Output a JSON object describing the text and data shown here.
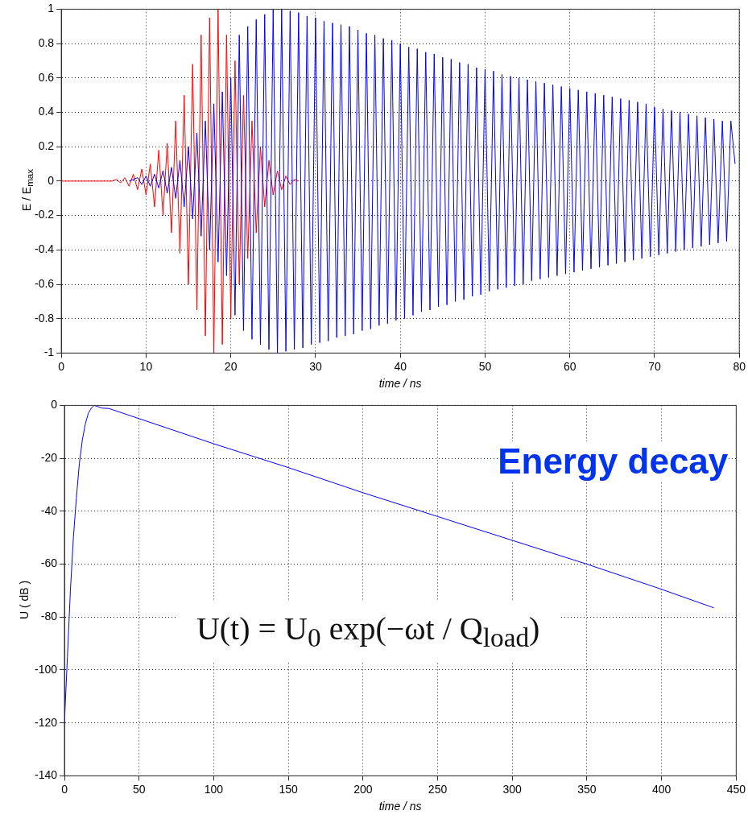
{
  "chart_data": [
    {
      "type": "line",
      "xlabel": "time / ns",
      "ylabel": "E / E$_{max}$",
      "xlim": [
        0,
        80
      ],
      "ylim": [
        -1,
        1
      ],
      "xticks": [
        0,
        10,
        20,
        30,
        40,
        50,
        60,
        70,
        80
      ],
      "yticks": [
        -1,
        -0.8,
        -0.6,
        -0.4,
        -0.2,
        0,
        0.2,
        0.4,
        0.6,
        0.8,
        1
      ],
      "grid": true,
      "legend": false,
      "marker": "none",
      "line_style": "solid",
      "series": [
        {
          "color": "#0000ff",
          "x": [
            8,
            9,
            9.5,
            10,
            10.5,
            11,
            11.5,
            12,
            12.5,
            13,
            13.5,
            14,
            14.5,
            15,
            15.5,
            16,
            16.5,
            17,
            17.5,
            18,
            18.5,
            19,
            19.5,
            20,
            20.5,
            21,
            21.5,
            22,
            22.5,
            23,
            23.5,
            24,
            24.5,
            25,
            25.5,
            26,
            26.5,
            27,
            27.5,
            28,
            28.5,
            29,
            29.5,
            30,
            30.5,
            31,
            31.5,
            32,
            32.5,
            33,
            33.5,
            34,
            34.5,
            35,
            35.5,
            36,
            36.5,
            37,
            37.5,
            38,
            38.5,
            39,
            39.5,
            40,
            40.5,
            41,
            41.5,
            42,
            42.5,
            43,
            43.5,
            44,
            44.5,
            45,
            45.5,
            46,
            46.5,
            47,
            47.5,
            48,
            48.5,
            49,
            49.5,
            50,
            50.5,
            51,
            51.5,
            52,
            52.5,
            53,
            53.5,
            54,
            54.5,
            55,
            55.5,
            56,
            56.5,
            57,
            57.5,
            58,
            58.5,
            59,
            59.5,
            60,
            60.5,
            61,
            61.5,
            62,
            62.5,
            63,
            63.5,
            64,
            64.5,
            65,
            65.5,
            66,
            66.5,
            67,
            67.5,
            68,
            68.5,
            69,
            69.5,
            70,
            70.5,
            71,
            71.5,
            72,
            72.5,
            73,
            73.5,
            74,
            74.5,
            75,
            75.5,
            76,
            76.5,
            77,
            77.5,
            78,
            78.5,
            79,
            79.5
          ],
          "values": [
            0,
            0.02,
            -0.02,
            0.03,
            -0.03,
            0.04,
            -0.04,
            0.06,
            -0.07,
            0.08,
            -0.1,
            0.12,
            -0.15,
            0.2,
            -0.22,
            0.28,
            -0.32,
            0.35,
            -0.4,
            0.45,
            -0.47,
            0.52,
            -0.55,
            0.6,
            -0.78,
            0.85,
            -0.87,
            0.9,
            -0.92,
            0.94,
            -0.95,
            0.97,
            -0.98,
            1,
            -1,
            1,
            -0.99,
            0.99,
            -0.98,
            0.98,
            -0.97,
            0.96,
            -0.95,
            0.95,
            -0.94,
            0.93,
            -0.93,
            0.92,
            -0.91,
            0.91,
            -0.9,
            0.9,
            -0.89,
            0.88,
            -0.87,
            0.86,
            -0.86,
            0.85,
            -0.84,
            0.83,
            -0.83,
            0.82,
            -0.81,
            0.8,
            -0.8,
            0.78,
            -0.78,
            0.77,
            -0.76,
            0.75,
            -0.75,
            0.74,
            -0.73,
            0.72,
            -0.72,
            0.71,
            -0.7,
            0.69,
            -0.69,
            0.68,
            -0.67,
            0.66,
            -0.66,
            0.65,
            -0.64,
            0.64,
            -0.63,
            0.62,
            -0.62,
            0.61,
            -0.61,
            0.6,
            -0.6,
            0.59,
            -0.58,
            0.58,
            -0.57,
            0.57,
            -0.56,
            0.56,
            -0.55,
            0.55,
            -0.54,
            0.54,
            -0.53,
            0.53,
            -0.52,
            0.52,
            -0.51,
            0.51,
            -0.5,
            0.5,
            -0.49,
            0.49,
            -0.48,
            0.48,
            -0.47,
            0.47,
            -0.46,
            0.46,
            -0.45,
            0.45,
            -0.44,
            0.43,
            -0.43,
            0.42,
            -0.42,
            0.41,
            -0.41,
            0.4,
            -0.4,
            0.39,
            -0.39,
            0.38,
            -0.38,
            0.37,
            -0.37,
            0.36,
            -0.36,
            0.35,
            -0.35,
            0.35,
            0.1
          ]
        },
        {
          "color": "#ff0000",
          "x": [
            0,
            6,
            6.5,
            7,
            7.5,
            8,
            8.5,
            9,
            9.5,
            10,
            10.5,
            11,
            11.5,
            12,
            12.5,
            13,
            13.5,
            14,
            14.5,
            15,
            15.5,
            16,
            16.5,
            17,
            17.5,
            18,
            18.5,
            19,
            19.5,
            20,
            20.5,
            21,
            21.5,
            22,
            22.5,
            23,
            23.5,
            24,
            24.5,
            25,
            25.5,
            26,
            26.5,
            27,
            27.5,
            28
          ],
          "values": [
            0,
            0,
            0.01,
            -0.01,
            0.02,
            -0.03,
            0.04,
            -0.05,
            0.07,
            -0.08,
            0.1,
            -0.15,
            0.18,
            -0.2,
            0.22,
            -0.3,
            0.35,
            -0.42,
            0.5,
            -0.6,
            0.68,
            -0.75,
            0.85,
            -0.9,
            0.95,
            -1,
            1,
            -0.95,
            0.85,
            -0.8,
            0.7,
            -0.6,
            0.5,
            -0.45,
            0.35,
            -0.3,
            0.2,
            -0.15,
            0.12,
            -0.08,
            0.06,
            -0.05,
            0.03,
            -0.02,
            0.01,
            0
          ]
        }
      ]
    },
    {
      "type": "line",
      "xlabel": "time / ns",
      "ylabel": "U ( dB )",
      "xlim": [
        0,
        450
      ],
      "ylim": [
        -140,
        0
      ],
      "xticks": [
        0,
        50,
        100,
        150,
        200,
        250,
        300,
        350,
        400,
        450
      ],
      "yticks": [
        -140,
        -120,
        -100,
        -80,
        -60,
        -40,
        -20,
        0
      ],
      "grid": true,
      "legend": false,
      "marker": "none",
      "line_style": "solid",
      "annotations": [
        "Energy decay",
        "U(t) = U$_{0}$ exp(−ωt / Q$_{load}$)"
      ],
      "series": [
        {
          "color": "#0000ff",
          "x": [
            0,
            2,
            4,
            6,
            8,
            10,
            12,
            14,
            16,
            18,
            20,
            25,
            30,
            50,
            100,
            150,
            200,
            250,
            300,
            350,
            400,
            435
          ],
          "values": [
            -120,
            -95,
            -70,
            -50,
            -35,
            -22,
            -13,
            -7,
            -3,
            -1,
            0,
            -1,
            -1.2,
            -5,
            -14.5,
            -23.5,
            -33,
            -42,
            -51,
            -60,
            -69.5,
            -76.5
          ]
        }
      ]
    }
  ]
}
